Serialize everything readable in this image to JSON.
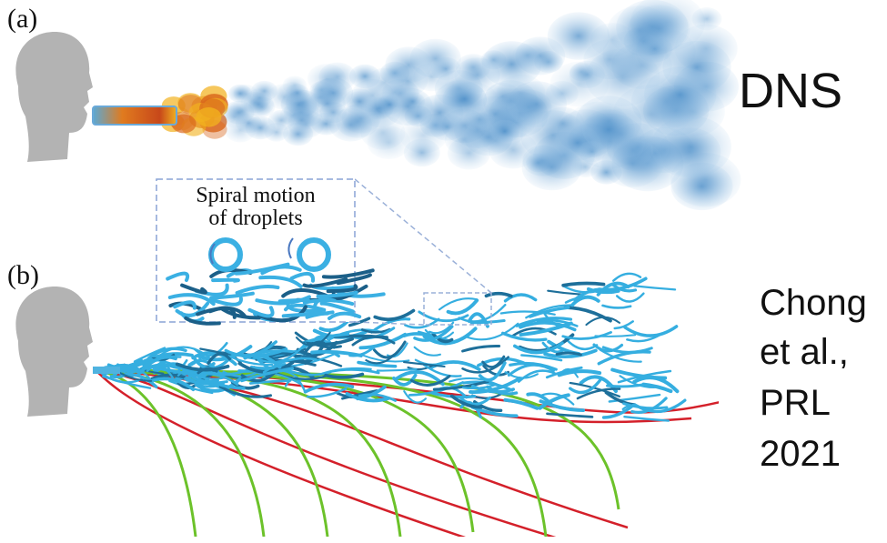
{
  "panel_a": {
    "label": "(a)",
    "method": "DNS"
  },
  "inset": {
    "lines": [
      "Spiral motion",
      "of droplets"
    ]
  },
  "panel_b": {
    "label": "(b)",
    "citation": [
      "Chong",
      "et al.,",
      "PRL",
      "2021"
    ]
  }
}
